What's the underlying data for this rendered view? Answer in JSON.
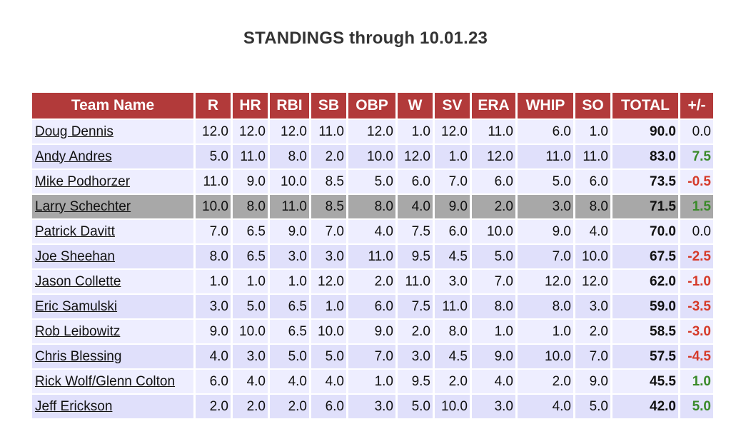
{
  "title": "STANDINGS through 10.01.23",
  "columns": [
    "Team Name",
    "R",
    "HR",
    "RBI",
    "SB",
    "OBP",
    "W",
    "SV",
    "ERA",
    "WHIP",
    "SO",
    "TOTAL",
    "+/-"
  ],
  "highlight_color": "#a8a8a8",
  "header_color": "#b23a3a",
  "rows": [
    {
      "team": "Doug Dennis",
      "stats": [
        "12.0",
        "12.0",
        "12.0",
        "11.0",
        "12.0",
        "1.0",
        "12.0",
        "11.0",
        "6.0",
        "1.0"
      ],
      "total": "90.0",
      "delta": "0.0",
      "delta_sign": "zero",
      "highlight": false
    },
    {
      "team": "Andy Andres",
      "stats": [
        "5.0",
        "11.0",
        "8.0",
        "2.0",
        "10.0",
        "12.0",
        "1.0",
        "12.0",
        "11.0",
        "11.0"
      ],
      "total": "83.0",
      "delta": "7.5",
      "delta_sign": "pos",
      "highlight": false
    },
    {
      "team": "Mike Podhorzer",
      "stats": [
        "11.0",
        "9.0",
        "10.0",
        "8.5",
        "5.0",
        "6.0",
        "7.0",
        "6.0",
        "5.0",
        "6.0"
      ],
      "total": "73.5",
      "delta": "-0.5",
      "delta_sign": "neg",
      "highlight": false
    },
    {
      "team": "Larry Schechter",
      "stats": [
        "10.0",
        "8.0",
        "11.0",
        "8.5",
        "8.0",
        "4.0",
        "9.0",
        "2.0",
        "3.0",
        "8.0"
      ],
      "total": "71.5",
      "delta": "1.5",
      "delta_sign": "pos",
      "highlight": true
    },
    {
      "team": "Patrick Davitt",
      "stats": [
        "7.0",
        "6.5",
        "9.0",
        "7.0",
        "4.0",
        "7.5",
        "6.0",
        "10.0",
        "9.0",
        "4.0"
      ],
      "total": "70.0",
      "delta": "0.0",
      "delta_sign": "zero",
      "highlight": false
    },
    {
      "team": "Joe Sheehan",
      "stats": [
        "8.0",
        "6.5",
        "3.0",
        "3.0",
        "11.0",
        "9.5",
        "4.5",
        "5.0",
        "7.0",
        "10.0"
      ],
      "total": "67.5",
      "delta": "-2.5",
      "delta_sign": "neg",
      "highlight": false
    },
    {
      "team": "Jason Collette",
      "stats": [
        "1.0",
        "1.0",
        "1.0",
        "12.0",
        "2.0",
        "11.0",
        "3.0",
        "7.0",
        "12.0",
        "12.0"
      ],
      "total": "62.0",
      "delta": "-1.0",
      "delta_sign": "neg",
      "highlight": false
    },
    {
      "team": "Eric Samulski",
      "stats": [
        "3.0",
        "5.0",
        "6.5",
        "1.0",
        "6.0",
        "7.5",
        "11.0",
        "8.0",
        "8.0",
        "3.0"
      ],
      "total": "59.0",
      "delta": "-3.5",
      "delta_sign": "neg",
      "highlight": false
    },
    {
      "team": "Rob Leibowitz",
      "stats": [
        "9.0",
        "10.0",
        "6.5",
        "10.0",
        "9.0",
        "2.0",
        "8.0",
        "1.0",
        "1.0",
        "2.0"
      ],
      "total": "58.5",
      "delta": "-3.0",
      "delta_sign": "neg",
      "highlight": false
    },
    {
      "team": "Chris Blessing",
      "stats": [
        "4.0",
        "3.0",
        "5.0",
        "5.0",
        "7.0",
        "3.0",
        "4.5",
        "9.0",
        "10.0",
        "7.0"
      ],
      "total": "57.5",
      "delta": "-4.5",
      "delta_sign": "neg",
      "highlight": false
    },
    {
      "team": "Rick Wolf/Glenn Colton",
      "stats": [
        "6.0",
        "4.0",
        "4.0",
        "4.0",
        "1.0",
        "9.5",
        "2.0",
        "4.0",
        "2.0",
        "9.0"
      ],
      "total": "45.5",
      "delta": "1.0",
      "delta_sign": "pos",
      "highlight": false
    },
    {
      "team": "Jeff Erickson",
      "stats": [
        "2.0",
        "2.0",
        "2.0",
        "6.0",
        "3.0",
        "5.0",
        "10.0",
        "3.0",
        "4.0",
        "5.0"
      ],
      "total": "42.0",
      "delta": "5.0",
      "delta_sign": "pos",
      "highlight": false
    }
  ]
}
